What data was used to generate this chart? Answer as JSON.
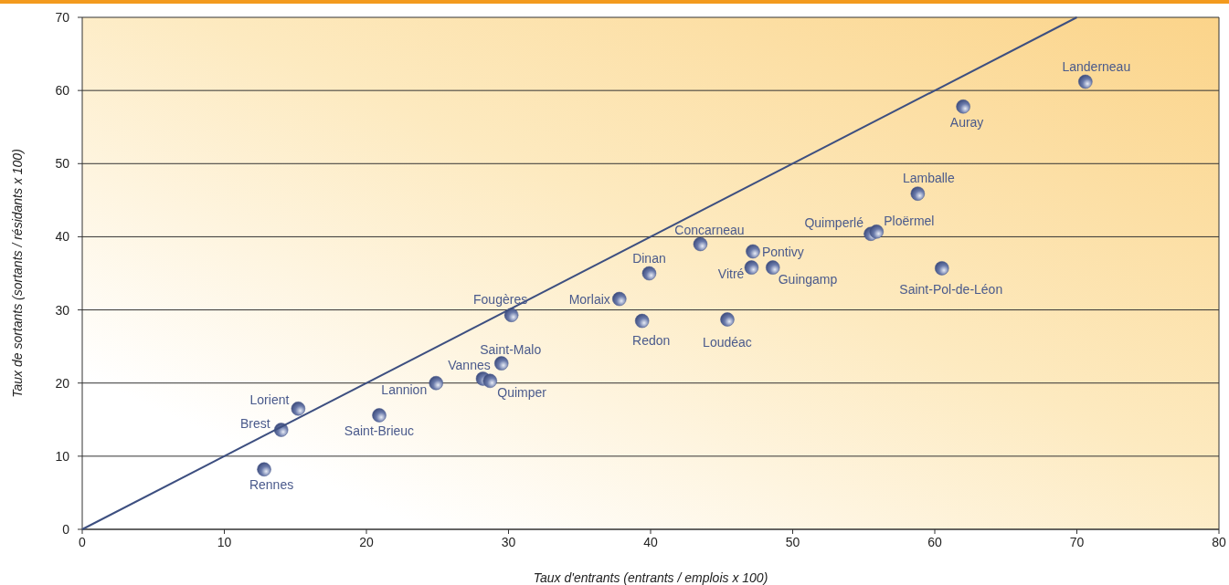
{
  "chart_data": {
    "type": "scatter",
    "xlabel": "Taux d'entrants (entrants / emplois x 100)",
    "ylabel": "Taux de sortants (sortants / résidants x 100)",
    "xlim": [
      0,
      80
    ],
    "xticks": [
      0,
      10,
      20,
      30,
      40,
      50,
      60,
      70,
      80
    ],
    "ylim": [
      0,
      70
    ],
    "yticks": [
      0,
      10,
      20,
      30,
      40,
      50,
      60,
      70
    ],
    "grid": "y",
    "series": [
      {
        "marker": "circle",
        "color": "#4a5a8c",
        "x": [
          70.6,
          62.0,
          58.8,
          55.5,
          55.9,
          60.5,
          43.5,
          47.2,
          47.1,
          48.6,
          39.9,
          45.4,
          37.8,
          39.4,
          30.2,
          29.5,
          28.2,
          28.7,
          24.9,
          20.9,
          15.2,
          14.0,
          12.8
        ],
        "values": [
          61.2,
          57.8,
          45.9,
          40.4,
          40.7,
          35.7,
          39.0,
          38.0,
          35.8,
          35.8,
          35.0,
          28.7,
          31.5,
          28.5,
          29.3,
          22.7,
          20.6,
          20.3,
          20.0,
          15.6,
          16.5,
          13.6,
          8.2
        ]
      },
      {
        "type": "line",
        "marker": "none",
        "color": "#3d4f80",
        "x": [
          0,
          70
        ],
        "values": [
          0,
          70
        ]
      }
    ],
    "annotations": [
      {
        "text": "Landerneau",
        "x": 70.6,
        "y": 61.2
      },
      {
        "text": "Auray",
        "x": 62.0,
        "y": 57.8
      },
      {
        "text": "Lamballe",
        "x": 58.8,
        "y": 45.9
      },
      {
        "text": "Quimperlé",
        "x": 55.5,
        "y": 40.4
      },
      {
        "text": "Ploërmel",
        "x": 55.9,
        "y": 40.7
      },
      {
        "text": "Saint-Pol-de-Léon",
        "x": 60.5,
        "y": 35.7
      },
      {
        "text": "Concarneau",
        "x": 43.5,
        "y": 39.0
      },
      {
        "text": "Pontivy",
        "x": 47.2,
        "y": 38.0
      },
      {
        "text": "Vitré",
        "x": 47.1,
        "y": 35.8
      },
      {
        "text": "Guingamp",
        "x": 48.6,
        "y": 35.8
      },
      {
        "text": "Dinan",
        "x": 39.9,
        "y": 35.0
      },
      {
        "text": "Loudéac",
        "x": 45.4,
        "y": 28.7
      },
      {
        "text": "Morlaix",
        "x": 37.8,
        "y": 31.5
      },
      {
        "text": "Redon",
        "x": 39.4,
        "y": 28.5
      },
      {
        "text": "Fougères",
        "x": 30.2,
        "y": 29.3
      },
      {
        "text": "Saint-Malo",
        "x": 29.5,
        "y": 22.7
      },
      {
        "text": "Vannes",
        "x": 28.2,
        "y": 20.6
      },
      {
        "text": "Quimper",
        "x": 28.7,
        "y": 20.3
      },
      {
        "text": "Lannion",
        "x": 24.9,
        "y": 20.0
      },
      {
        "text": "Saint-Brieuc",
        "x": 20.9,
        "y": 15.6
      },
      {
        "text": "Lorient",
        "x": 15.2,
        "y": 16.5
      },
      {
        "text": "Brest",
        "x": 14.0,
        "y": 13.6
      },
      {
        "text": "Rennes",
        "x": 12.8,
        "y": 8.2
      }
    ]
  }
}
